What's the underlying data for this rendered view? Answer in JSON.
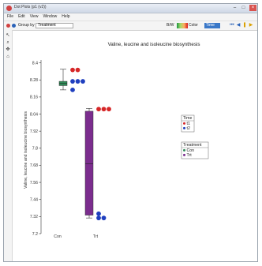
{
  "window": {
    "title": "Dot Plots (p1 (v2))",
    "menu": [
      "File",
      "Edit",
      "View",
      "Window",
      "Help"
    ]
  },
  "toolbar": {
    "group_label": "Group by",
    "group_value": "Treatment",
    "color_label": "Color",
    "selected_value": "Time",
    "view_label": "B/W"
  },
  "icons": {
    "close": "close-icon",
    "minimize": "minimize-icon",
    "maximize": "maximize-icon",
    "pointer_tool": "pointer-icon",
    "zoom_tool": "zoom-icon",
    "pan_tool": "pan-icon",
    "home_tool": "home-icon",
    "nav_first": "skip-back-icon",
    "nav_prev": "step-back-icon",
    "nav_pause": "pause-icon",
    "nav_next": "play-icon"
  },
  "chart_data": {
    "type": "box+dot",
    "title": "Valine, leucine and isoleucine biosynthesis",
    "ylabel": "Valine, leucine and isoleucine biosynthesis",
    "ylim": [
      7.2,
      8.42
    ],
    "yticks": [
      7.2,
      7.32,
      7.44,
      7.56,
      7.68,
      7.8,
      7.92,
      8.04,
      8.16,
      8.28,
      8.4
    ],
    "categories": [
      "Con",
      "Trt"
    ],
    "boxes": [
      {
        "category": "Con",
        "color": "#2e8b57",
        "min": 8.21,
        "q1": 8.24,
        "median": 8.255,
        "q3": 8.27,
        "max": 8.355
      },
      {
        "category": "Trt",
        "color": "#7b2d8e",
        "min": 7.31,
        "q1": 7.33,
        "median": 7.69,
        "q3": 8.06,
        "max": 8.08
      }
    ],
    "points": [
      {
        "category": "Con",
        "time": "t1",
        "color": "#d62728",
        "values": [
          8.35,
          8.35
        ]
      },
      {
        "category": "Con",
        "time": "t2",
        "color": "#1f3fbf",
        "values": [
          8.27,
          8.27,
          8.27,
          8.21
        ]
      },
      {
        "category": "Trt",
        "time": "t1",
        "color": "#d62728",
        "values": [
          8.075,
          8.075,
          8.075
        ]
      },
      {
        "category": "Trt",
        "time": "t2",
        "color": "#1f3fbf",
        "values": [
          7.34,
          7.31,
          7.31
        ]
      }
    ],
    "legends": [
      {
        "title": "Time",
        "entries": [
          {
            "label": "t1",
            "color": "#d62728"
          },
          {
            "label": "t2",
            "color": "#1f3fbf"
          }
        ]
      },
      {
        "title": "Treatment",
        "entries": [
          {
            "label": "Con",
            "color": "#2e8b57"
          },
          {
            "label": "Trt",
            "color": "#7b2d8e"
          }
        ]
      }
    ],
    "legend_placement": "right",
    "grid": false
  }
}
